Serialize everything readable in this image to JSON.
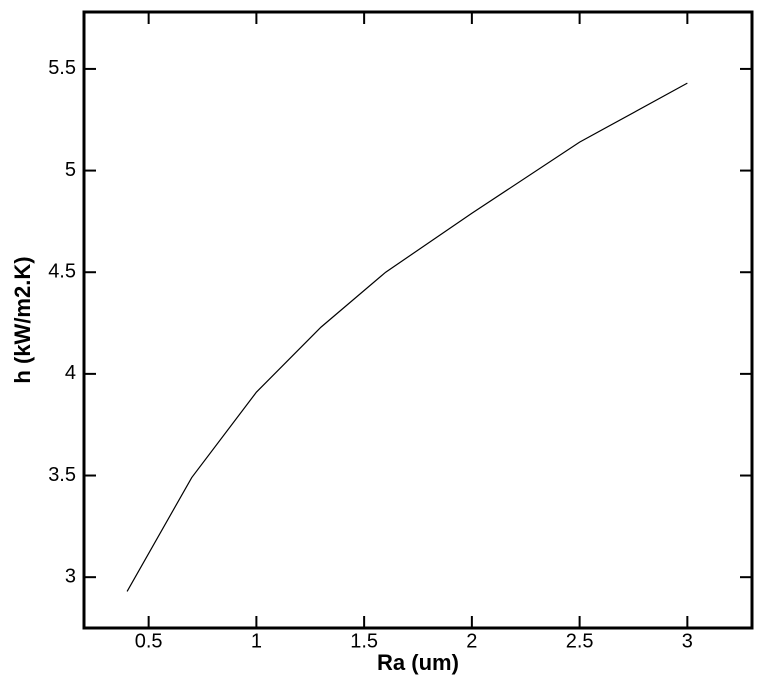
{
  "chart_data": {
    "type": "line",
    "x_label": "Ra (um)",
    "y_label": "h (kW/m2.K)",
    "x": [
      0.4,
      0.7,
      1,
      1.3,
      1.6,
      2,
      2.5,
      3
    ],
    "values": [
      2.93,
      3.49,
      3.91,
      4.23,
      4.5,
      4.79,
      5.14,
      5.43
    ],
    "color": "#000000",
    "xlim": [
      0.2,
      3.3
    ],
    "xticks": [
      0.5,
      1,
      1.5,
      2,
      2.5,
      3
    ],
    "ylim": [
      2.75,
      5.78
    ],
    "yticks": [
      3,
      3.5,
      4,
      4.5,
      5,
      5.5
    ],
    "grid": false
  }
}
